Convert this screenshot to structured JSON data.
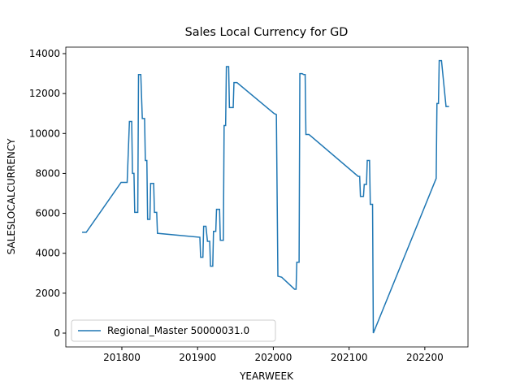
{
  "chart_data": {
    "type": "line",
    "title": "Sales Local Currency for GD",
    "x_label": "YEARWEEK",
    "y_label": "SALESLOCALCURRENCY",
    "x": [
      201747.5,
      201753,
      201799,
      201807,
      201810,
      201813,
      201814,
      201816,
      201817,
      201821,
      201822,
      201825,
      201827,
      201830,
      201831,
      201833,
      201834,
      201837,
      201838,
      201842,
      201843,
      201846,
      201847,
      201903,
      201904,
      201907,
      201908,
      201911,
      201913,
      201916,
      201917,
      201920,
      201921,
      201924,
      201925,
      201929,
      201930,
      201934,
      201935,
      201937,
      201938,
      201941,
      201942,
      201947,
      201948,
      201952,
      202001,
      202004,
      202006,
      202011,
      202028,
      202030,
      202031,
      202034,
      202035,
      202038,
      202040,
      202042,
      202043,
      202047,
      202112,
      202114,
      202115,
      202119,
      202120,
      202123,
      202124,
      202127,
      202128,
      202131,
      202132,
      202215,
      202216,
      202218,
      202219,
      202222,
      202228,
      202232
    ],
    "series": [
      {
        "name": "Regional_Master 50000031.0",
        "color": "#1f77b4",
        "values": [
          5050,
          5050,
          7550,
          7550,
          10600,
          10600,
          8000,
          8000,
          6050,
          6050,
          12950,
          12950,
          10750,
          10750,
          8650,
          8650,
          5700,
          5700,
          7500,
          7500,
          6050,
          6050,
          5000,
          4800,
          3800,
          3800,
          5350,
          5350,
          4600,
          4600,
          3350,
          3350,
          5100,
          5100,
          6200,
          6200,
          4650,
          4650,
          10400,
          10400,
          13350,
          13350,
          11300,
          11300,
          12550,
          12550,
          11000,
          10950,
          2850,
          2800,
          2200,
          2200,
          3550,
          3550,
          13000,
          13000,
          12950,
          12950,
          9950,
          9950,
          7850,
          7850,
          6850,
          6850,
          7450,
          7450,
          8650,
          8650,
          6450,
          6450,
          0,
          7750,
          11500,
          11500,
          13650,
          13650,
          11350,
          11350
        ]
      }
    ],
    "xlim": [
      201726,
      202257
    ],
    "xticks": [
      201800,
      201900,
      202000,
      202100,
      202200
    ],
    "ylim": [
      -692,
      14326
    ],
    "yticks": [
      0,
      2000,
      4000,
      6000,
      8000,
      10000,
      12000,
      14000
    ],
    "legend": "lower left"
  }
}
